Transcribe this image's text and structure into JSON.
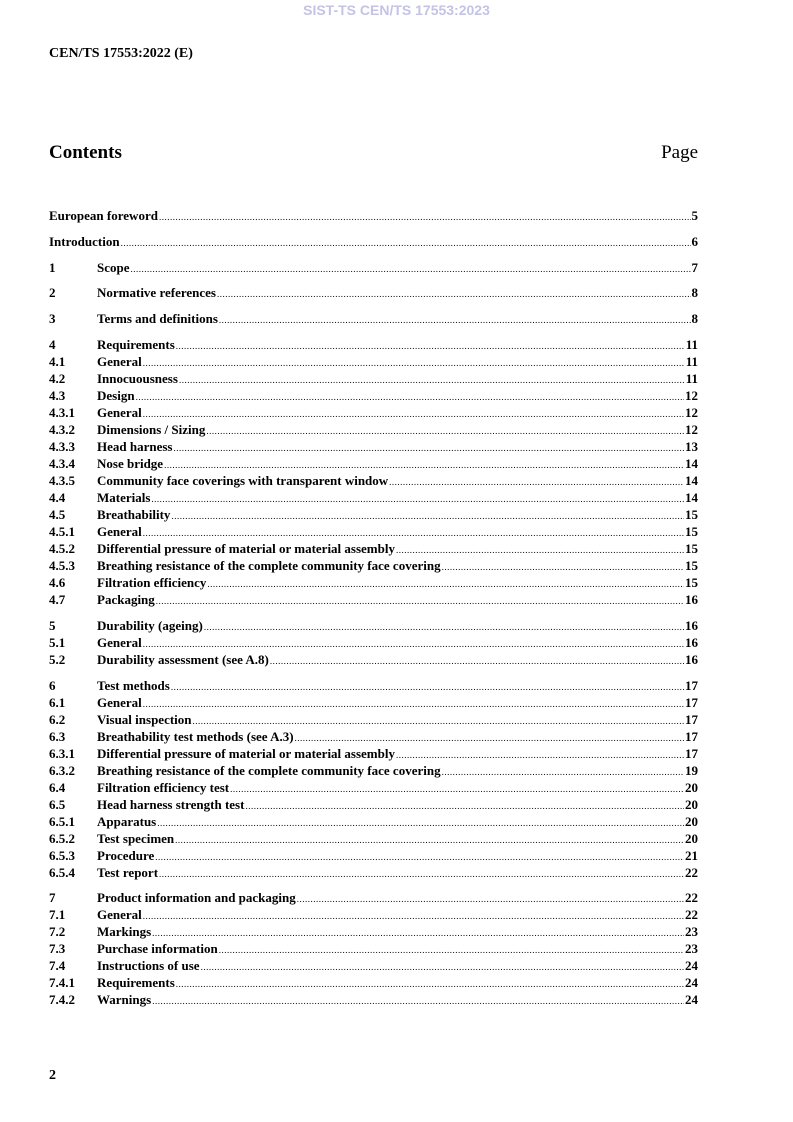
{
  "watermark": "SIST-TS CEN/TS 17553:2023",
  "document_id": "CEN/TS 17553:2022 (E)",
  "contents_heading": "Contents",
  "page_heading": "Page",
  "toc_groups": [
    [
      {
        "num": "",
        "title": "European foreword",
        "page": "5"
      }
    ],
    [
      {
        "num": "",
        "title": "Introduction",
        "page": "6"
      }
    ],
    [
      {
        "num": "1",
        "title": "Scope",
        "page": "7"
      }
    ],
    [
      {
        "num": "2",
        "title": "Normative references",
        "page": "8"
      }
    ],
    [
      {
        "num": "3",
        "title": "Terms and definitions",
        "page": "8"
      }
    ],
    [
      {
        "num": "4",
        "title": "Requirements",
        "page": "11"
      },
      {
        "num": "4.1",
        "title": "General",
        "page": "11"
      },
      {
        "num": "4.2",
        "title": "Innocuousness",
        "page": "11"
      },
      {
        "num": "4.3",
        "title": "Design",
        "page": "12"
      },
      {
        "num": "4.3.1",
        "title": "General",
        "page": "12"
      },
      {
        "num": "4.3.2",
        "title": "Dimensions / Sizing",
        "page": "12"
      },
      {
        "num": "4.3.3",
        "title": "Head harness",
        "page": "13"
      },
      {
        "num": "4.3.4",
        "title": "Nose bridge",
        "page": "14"
      },
      {
        "num": "4.3.5",
        "title": "Community face coverings with transparent window",
        "page": "14"
      },
      {
        "num": "4.4",
        "title": "Materials",
        "page": "14"
      },
      {
        "num": "4.5",
        "title": "Breathability",
        "page": "15"
      },
      {
        "num": "4.5.1",
        "title": "General",
        "page": "15"
      },
      {
        "num": "4.5.2",
        "title": "Differential pressure of material or material assembly",
        "page": "15"
      },
      {
        "num": "4.5.3",
        "title": "Breathing resistance of the complete community face covering",
        "page": "15"
      },
      {
        "num": "4.6",
        "title": "Filtration efficiency",
        "page": "15"
      },
      {
        "num": "4.7",
        "title": "Packaging",
        "page": "16"
      }
    ],
    [
      {
        "num": "5",
        "title": "Durability (ageing)",
        "page": "16"
      },
      {
        "num": "5.1",
        "title": "General",
        "page": "16"
      },
      {
        "num": "5.2",
        "title": "Durability assessment (see A.8)",
        "page": "16"
      }
    ],
    [
      {
        "num": "6",
        "title": "Test methods",
        "page": "17"
      },
      {
        "num": "6.1",
        "title": "General",
        "page": "17"
      },
      {
        "num": "6.2",
        "title": "Visual inspection",
        "page": "17"
      },
      {
        "num": "6.3",
        "title": "Breathability test methods (see A.3)",
        "page": "17"
      },
      {
        "num": "6.3.1",
        "title": "Differential pressure of material or material assembly",
        "page": "17"
      },
      {
        "num": "6.3.2",
        "title": "Breathing resistance of the complete community face covering",
        "page": "19"
      },
      {
        "num": "6.4",
        "title": "Filtration efficiency test",
        "page": "20"
      },
      {
        "num": "6.5",
        "title": "Head harness strength test",
        "page": "20"
      },
      {
        "num": "6.5.1",
        "title": "Apparatus",
        "page": "20"
      },
      {
        "num": "6.5.2",
        "title": "Test specimen",
        "page": "20"
      },
      {
        "num": "6.5.3",
        "title": "Procedure",
        "page": "21"
      },
      {
        "num": "6.5.4",
        "title": "Test report",
        "page": "22"
      }
    ],
    [
      {
        "num": "7",
        "title": "Product information and packaging",
        "page": "22"
      },
      {
        "num": "7.1",
        "title": "General",
        "page": "22"
      },
      {
        "num": "7.2",
        "title": "Markings",
        "page": "23"
      },
      {
        "num": "7.3",
        "title": "Purchase information",
        "page": "23"
      },
      {
        "num": "7.4",
        "title": "Instructions of use",
        "page": "24"
      },
      {
        "num": "7.4.1",
        "title": "Requirements",
        "page": "24"
      },
      {
        "num": "7.4.2",
        "title": "Warnings",
        "page": "24"
      }
    ]
  ],
  "page_number": "2"
}
